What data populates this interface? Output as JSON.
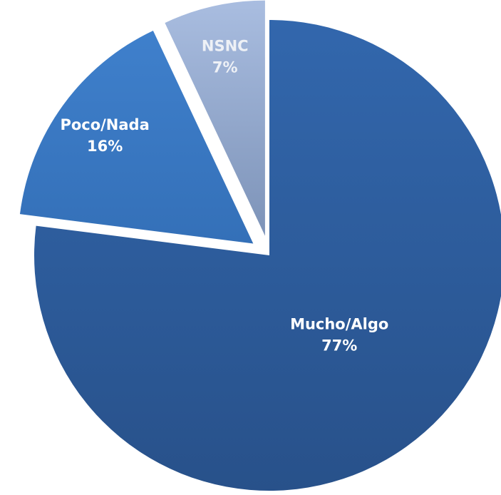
{
  "chart_data": {
    "type": "pie",
    "categories": [
      "Mucho/Algo",
      "Poco/Nada",
      "NSNC"
    ],
    "values": [
      77,
      16,
      7
    ],
    "value_labels": [
      "77%",
      "16%",
      "7%"
    ],
    "colors": [
      "#2c5c9c",
      "#3a78c4",
      "#9db3d7"
    ]
  }
}
